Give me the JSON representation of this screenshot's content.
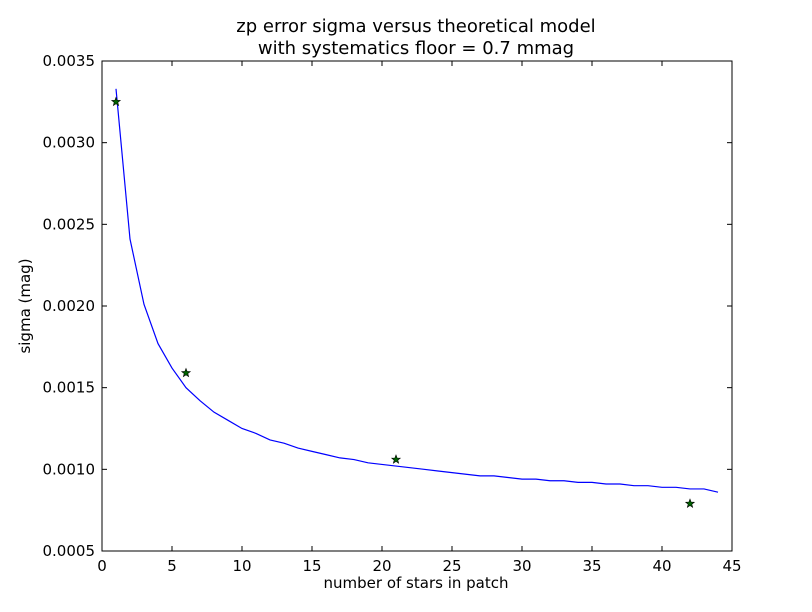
{
  "chart_data": {
    "type": "line",
    "title": "zp error sigma versus theoretical model",
    "subtitle": "with systematics floor = 0.7 mmag",
    "xlabel": "number of stars in patch",
    "ylabel": "sigma (mag)",
    "xlim": [
      0,
      45
    ],
    "ylim": [
      0.0005,
      0.0035
    ],
    "x_ticks": [
      0,
      5,
      10,
      15,
      20,
      25,
      30,
      35,
      40,
      45
    ],
    "x_tick_labels": [
      "0",
      "5",
      "10",
      "15",
      "20",
      "25",
      "30",
      "35",
      "40",
      "45"
    ],
    "y_ticks": [
      0.0005,
      0.001,
      0.0015,
      0.002,
      0.0025,
      0.003,
      0.0035
    ],
    "y_tick_labels": [
      "0.0005",
      "0.0010",
      "0.0015",
      "0.0020",
      "0.0025",
      "0.0030",
      "0.0035"
    ],
    "grid": false,
    "series": [
      {
        "kind": "line",
        "color": "#0000ff",
        "x": [
          1,
          2,
          3,
          4,
          5,
          6,
          7,
          8,
          9,
          10,
          11,
          12,
          13,
          14,
          15,
          16,
          17,
          18,
          19,
          20,
          21,
          22,
          23,
          24,
          25,
          26,
          27,
          28,
          29,
          30,
          31,
          32,
          33,
          34,
          35,
          36,
          37,
          38,
          39,
          40,
          41,
          42,
          43,
          44
        ],
        "y": [
          0.00333,
          0.00241,
          0.00201,
          0.00177,
          0.00162,
          0.0015,
          0.00142,
          0.00135,
          0.0013,
          0.00125,
          0.00122,
          0.00118,
          0.00116,
          0.00113,
          0.00111,
          0.00109,
          0.00107,
          0.00106,
          0.00104,
          0.00103,
          0.00102,
          0.00101,
          0.001,
          0.00099,
          0.00098,
          0.00097,
          0.00096,
          0.00096,
          0.00095,
          0.00094,
          0.00094,
          0.00093,
          0.00093,
          0.00092,
          0.00092,
          0.00091,
          0.00091,
          0.0009,
          0.0009,
          0.00089,
          0.00089,
          0.00088,
          0.00088,
          0.00086
        ]
      },
      {
        "kind": "scatter",
        "marker": "star",
        "color": "#006400",
        "x": [
          1,
          6,
          21,
          42
        ],
        "y": [
          0.00325,
          0.00159,
          0.00106,
          0.00079
        ]
      }
    ]
  }
}
